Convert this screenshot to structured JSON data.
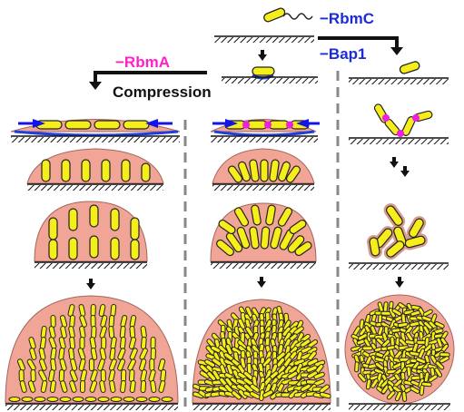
{
  "labels": {
    "rbmA": "−RbmA",
    "compression": "Compression",
    "rbmC": "−RbmC",
    "bap1": "−Bap1"
  },
  "colors": {
    "cell_fill": "#f6ee1a",
    "cell_stroke": "#222222",
    "matrix_fill": "#f0a596",
    "matrix_stroke": "#a3675e",
    "blue_arrow": "#1414e6",
    "blue_layer": "#1f3fdc",
    "magenta": "#ee1ee4",
    "rbmA_text": "#ff20c8",
    "rbmC_text": "#1b2bd8",
    "divider": "#888888"
  },
  "icons": [
    "arrow-down-icon",
    "compression-arrow-icon",
    "flagellum-icon"
  ]
}
